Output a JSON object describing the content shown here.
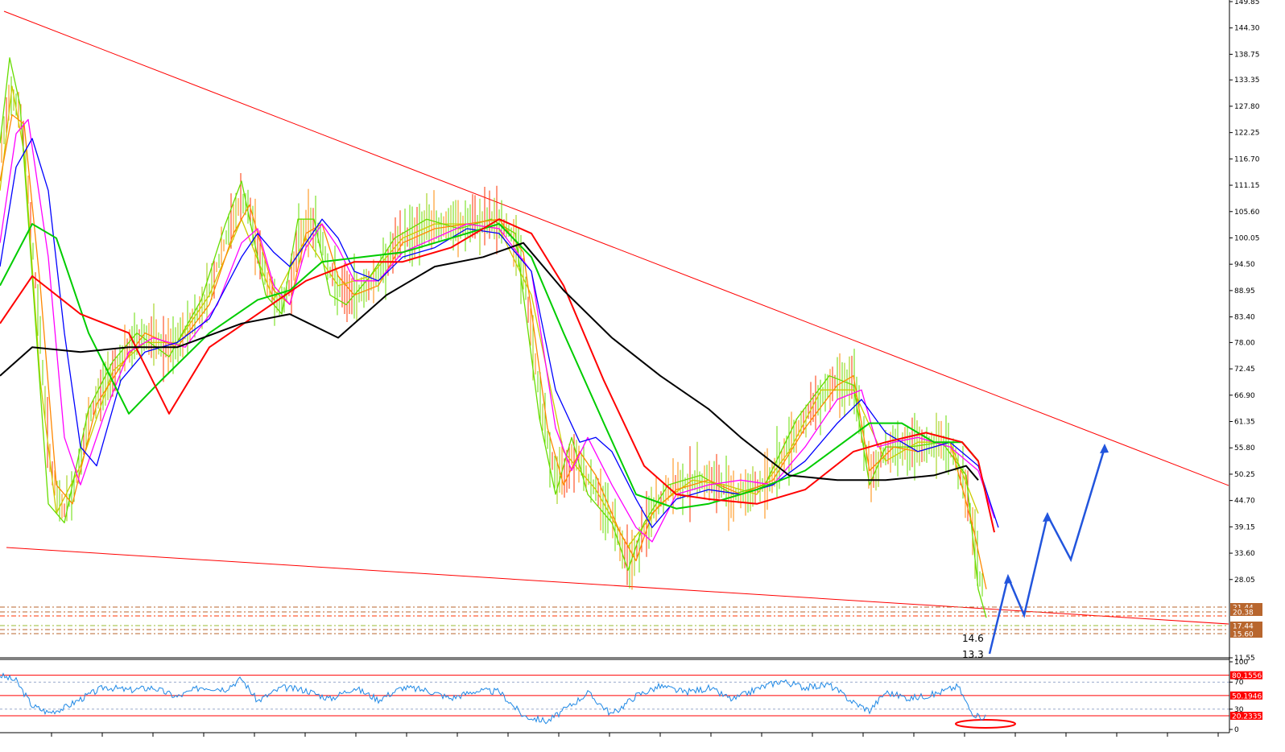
{
  "chart_data": [
    {
      "type": "line",
      "panel": "price",
      "y_tick_labels": [
        "149.85",
        "144.30",
        "138.75",
        "133.35",
        "127.80",
        "122.25",
        "116.70",
        "111.15",
        "105.60",
        "100.05",
        "94.50",
        "88.95",
        "83.40",
        "78.00",
        "72.45",
        "66.90",
        "61.35",
        "55.80",
        "50.25",
        "44.70",
        "39.15",
        "33.60",
        "28.05",
        "11.55"
      ],
      "ylim": [
        11.55,
        149.85
      ],
      "price_tags": [
        "21.44",
        "20.38",
        "17.44",
        "15.60"
      ],
      "price_tag_color": "#b8662e",
      "annotations": [
        "14.6",
        "13.3"
      ],
      "series": [
        {
          "key": "ma_black",
          "color": "#000000",
          "x": [
            0,
            40,
            100,
            160,
            220,
            300,
            360,
            420,
            480,
            540,
            600,
            650,
            700,
            760,
            820,
            880,
            920,
            980,
            1040,
            1100,
            1160,
            1200,
            1215
          ],
          "y": [
            71,
            77,
            76,
            77,
            77,
            82,
            84,
            79,
            88,
            94,
            96,
            99,
            89,
            79,
            71,
            64,
            58,
            50,
            49,
            49,
            50,
            52,
            49
          ]
        },
        {
          "key": "ma_red",
          "color": "#ff0000",
          "x": [
            0,
            40,
            100,
            160,
            210,
            260,
            320,
            380,
            440,
            500,
            560,
            620,
            660,
            700,
            750,
            800,
            840,
            880,
            940,
            1000,
            1060,
            1100,
            1150,
            1195,
            1215,
            1235
          ],
          "y": [
            82,
            92,
            84,
            80,
            63,
            77,
            84,
            91,
            95,
            95,
            98,
            104,
            101,
            90,
            70,
            52,
            46,
            45,
            44,
            47,
            55,
            57,
            59,
            57,
            53,
            38
          ]
        },
        {
          "key": "ma_green",
          "color": "#00cc00",
          "x": [
            0,
            40,
            70,
            110,
            160,
            200,
            260,
            320,
            360,
            400,
            450,
            500,
            560,
            620,
            660,
            700,
            750,
            790,
            840,
            880,
            940,
            1000,
            1040,
            1080,
            1120,
            1160,
            1195,
            1215
          ],
          "y": [
            90,
            103,
            100,
            80,
            63,
            70,
            80,
            87,
            89,
            95,
            96,
            97,
            100,
            103,
            96,
            80,
            61,
            46,
            43,
            44,
            47,
            51,
            56,
            61,
            61,
            57,
            57,
            53
          ]
        },
        {
          "key": "ma_blue",
          "color": "#0000ff",
          "x": [
            0,
            20,
            40,
            60,
            80,
            100,
            120,
            150,
            180,
            220,
            260,
            300,
            320,
            340,
            360,
            380,
            400,
            420,
            440,
            470,
            500,
            540,
            580,
            620,
            660,
            690,
            720,
            740,
            760,
            790,
            810,
            840,
            880,
            920,
            960,
            1000,
            1040,
            1070,
            1100,
            1140,
            1180,
            1215,
            1240
          ],
          "y": [
            94,
            115,
            121,
            110,
            80,
            56,
            52,
            70,
            76,
            78,
            83,
            96,
            101,
            97,
            94,
            99,
            104,
            100,
            93,
            91,
            96,
            98,
            102,
            101,
            93,
            68,
            57,
            58,
            55,
            45,
            39,
            45,
            47,
            46,
            48,
            53,
            61,
            66,
            59,
            55,
            57,
            52,
            39
          ]
        },
        {
          "key": "ma_magenta",
          "color": "#ff00ff",
          "x": [
            0,
            20,
            35,
            60,
            80,
            100,
            130,
            160,
            190,
            230,
            270,
            300,
            320,
            340,
            360,
            380,
            400,
            420,
            440,
            470,
            500,
            540,
            580,
            620,
            660,
            690,
            710,
            730,
            760,
            790,
            810,
            840,
            880,
            920,
            960,
            1000,
            1040,
            1070,
            1090,
            1110,
            1140,
            1180,
            1215,
            1235
          ],
          "y": [
            99,
            122,
            125,
            96,
            58,
            48,
            63,
            76,
            79,
            77,
            86,
            99,
            102,
            90,
            86,
            98,
            103,
            98,
            91,
            91,
            97,
            100,
            103,
            102,
            93,
            60,
            51,
            58,
            48,
            39,
            36,
            46,
            48,
            49,
            48,
            56,
            66,
            68,
            56,
            57,
            58,
            56,
            51,
            41
          ]
        },
        {
          "key": "ma_orange",
          "color": "#ff8800",
          "x": [
            0,
            15,
            30,
            50,
            70,
            90,
            120,
            150,
            180,
            220,
            260,
            290,
            310,
            340,
            360,
            380,
            400,
            420,
            440,
            470,
            500,
            540,
            580,
            620,
            650,
            680,
            700,
            720,
            740,
            770,
            790,
            810,
            840,
            880,
            920,
            960,
            1000,
            1040,
            1060,
            1080,
            1110,
            1140,
            1180,
            1210,
            1225
          ],
          "y": [
            112,
            126,
            124,
            90,
            48,
            44,
            65,
            73,
            80,
            77,
            86,
            101,
            107,
            89,
            86,
            101,
            103,
            92,
            88,
            90,
            99,
            102,
            103,
            104,
            97,
            60,
            48,
            55,
            50,
            38,
            32,
            42,
            47,
            49,
            46,
            49,
            60,
            69,
            71,
            51,
            56,
            55,
            57,
            38,
            26
          ]
        },
        {
          "key": "ma_lime",
          "color": "#66dd00",
          "x": [
            0,
            12,
            25,
            45,
            60,
            80,
            110,
            140,
            170,
            210,
            250,
            280,
            300,
            330,
            350,
            370,
            390,
            410,
            430,
            460,
            490,
            530,
            570,
            610,
            640,
            670,
            690,
            710,
            730,
            760,
            780,
            800,
            830,
            870,
            910,
            950,
            990,
            1030,
            1060,
            1080,
            1100,
            1130,
            1170,
            1200,
            1215,
            1225
          ],
          "y": [
            120,
            138,
            128,
            80,
            44,
            40,
            64,
            74,
            80,
            75,
            87,
            103,
            112,
            88,
            84,
            104,
            104,
            88,
            86,
            92,
            100,
            104,
            102,
            104,
            101,
            62,
            46,
            58,
            46,
            40,
            30,
            40,
            48,
            50,
            46,
            48,
            62,
            71,
            69,
            48,
            56,
            56,
            57,
            50,
            26,
            20
          ]
        },
        {
          "key": "ma_yellow",
          "color": "#cccc00",
          "x": [
            0,
            15,
            30,
            50,
            70,
            100,
            140,
            180,
            220,
            260,
            300,
            340,
            380,
            420,
            460,
            500,
            540,
            580,
            620,
            660,
            700,
            740,
            780,
            820,
            860,
            900,
            940,
            980,
            1020,
            1060,
            1100,
            1140,
            1180,
            1215
          ],
          "y": [
            110,
            132,
            118,
            70,
            42,
            52,
            72,
            78,
            78,
            88,
            104,
            87,
            100,
            90,
            92,
            100,
            103,
            103,
            102,
            88,
            55,
            47,
            35,
            44,
            49,
            48,
            46,
            55,
            68,
            68,
            53,
            57,
            57,
            42
          ]
        }
      ]
    },
    {
      "type": "line",
      "panel": "oscillator",
      "y_tick_labels": [
        "100",
        "70",
        "30",
        "0"
      ],
      "ylim": [
        0,
        100
      ],
      "level_tags": [
        "80.1556",
        "50.1946",
        "20.2335"
      ],
      "level_tag_color": "#ff0000",
      "series": [
        {
          "key": "rsi",
          "color": "#1e88e5",
          "x": [
            0,
            20,
            40,
            60,
            80,
            100,
            130,
            160,
            190,
            220,
            250,
            280,
            300,
            320,
            350,
            380,
            410,
            440,
            470,
            500,
            530,
            560,
            590,
            620,
            650,
            680,
            700,
            730,
            760,
            790,
            820,
            850,
            880,
            910,
            940,
            970,
            1000,
            1030,
            1060,
            1080,
            1100,
            1130,
            1160,
            1190,
            1205,
            1215,
            1225
          ],
          "y": [
            80,
            72,
            35,
            25,
            32,
            45,
            63,
            58,
            62,
            48,
            63,
            60,
            75,
            42,
            62,
            58,
            45,
            62,
            44,
            62,
            58,
            46,
            57,
            56,
            20,
            12,
            28,
            54,
            22,
            50,
            64,
            55,
            61,
            44,
            60,
            72,
            62,
            66,
            40,
            28,
            55,
            46,
            52,
            64,
            28,
            18,
            20
          ]
        }
      ]
    }
  ]
}
